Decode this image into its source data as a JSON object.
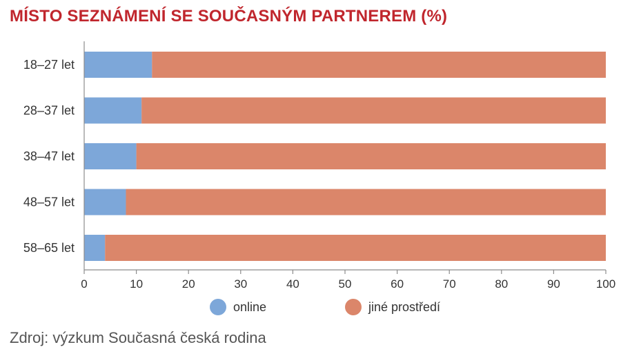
{
  "header": {
    "title": "MÍSTO SEZNÁMENÍ SE SOUČASNÝM PARTNEREM (%)",
    "title_color": "#c0262d"
  },
  "footer": {
    "source": "Zdroj: výzkum Současná česká rodina"
  },
  "chart_data": {
    "type": "bar",
    "orientation": "horizontal",
    "stacked": true,
    "title": "MÍSTO SEZNÁMENÍ SE SOUČASNÝM PARTNEREM (%)",
    "categories": [
      "18–27 let",
      "28–37 let",
      "38–47 let",
      "48–57 let",
      "58–65 let"
    ],
    "series": [
      {
        "name": "online",
        "color": "#7da7d9",
        "values": [
          13,
          11,
          10,
          8,
          4
        ]
      },
      {
        "name": "jiné prostředí",
        "color": "#db866a",
        "values": [
          87,
          89,
          90,
          92,
          96
        ]
      }
    ],
    "xlim": [
      0,
      100
    ],
    "xticks": [
      0,
      10,
      20,
      30,
      40,
      50,
      60,
      70,
      80,
      90,
      100
    ],
    "grid": false,
    "legend_position": "bottom"
  }
}
